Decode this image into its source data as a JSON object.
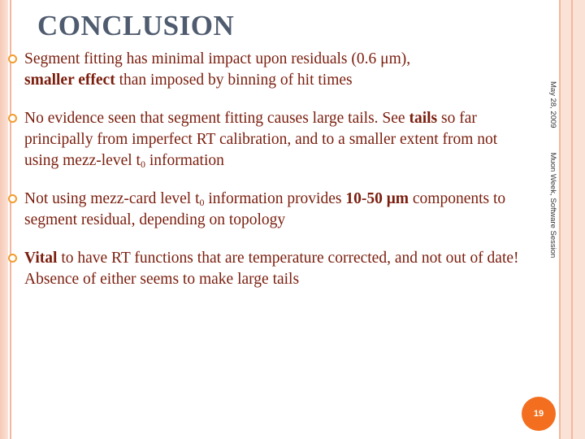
{
  "slide": {
    "title": "CONCLUSION",
    "date": "May 28, 2009",
    "event": "Muon Week, Software Session",
    "page_number": "19"
  },
  "bullets": [
    {
      "t1": "Segment fitting has minimal impact upon residuals (0.6 μm),",
      "b1": "smaller effect",
      "t2": " than imposed by binning of hit times"
    },
    {
      "t1": "No evidence seen that segment fitting causes large tails. See ",
      "b1": "tails",
      "t2": " so far principally from imperfect RT calibration, and to a smaller extent from not using mezz-level t",
      "sub": "0",
      "t3": " information"
    },
    {
      "t1": "Not using mezz-card level t",
      "sub": "0",
      "t2": " information provides ",
      "b1": "10-50 μm",
      "t3": " components to segment residual, depending on topology"
    },
    {
      "b1": "Vital",
      "t1": " to have RT functions that are temperature corrected, and not out of date! Absence of either seems to make large tails"
    }
  ],
  "colors": {
    "title": "#4f5b6e",
    "body_text": "#7a1e0e",
    "bullet_marker": "#f39c2f",
    "page_badge": "#f36f1f",
    "border": "#f4b89e"
  }
}
